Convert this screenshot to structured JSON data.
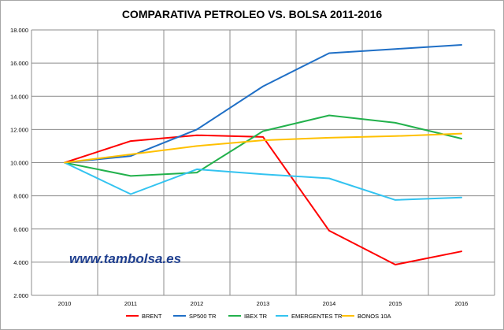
{
  "chart_data": {
    "type": "line",
    "title": "COMPARATIVA PETROLEO VS. BOLSA 2011-2016",
    "x": [
      "2010",
      "2011",
      "2012",
      "2013",
      "2014",
      "2015",
      "2016"
    ],
    "ylim": [
      2.0,
      18.0
    ],
    "yticks": [
      2.0,
      4.0,
      6.0,
      8.0,
      10.0,
      12.0,
      14.0,
      16.0,
      18.0
    ],
    "ytick_labels": [
      "2.000",
      "4.000",
      "6.000",
      "8.000",
      "10.000",
      "12.000",
      "14.000",
      "16.000",
      "18.000"
    ],
    "grid": true,
    "legend_position": "bottom",
    "series": [
      {
        "name": "BRENT",
        "color": "#ff0000",
        "values": [
          10.0,
          11.3,
          11.65,
          11.55,
          5.9,
          3.85,
          4.65
        ]
      },
      {
        "name": "SP500 TR",
        "color": "#1f6fc6",
        "values": [
          10.0,
          10.4,
          12.0,
          14.6,
          16.6,
          16.85,
          17.1
        ]
      },
      {
        "name": "IBEX TR",
        "color": "#22b14c",
        "values": [
          10.0,
          9.2,
          9.4,
          11.9,
          12.85,
          12.4,
          11.45
        ]
      },
      {
        "name": "EMERGENTES TR",
        "color": "#33c3f0",
        "values": [
          10.0,
          8.1,
          9.6,
          9.3,
          9.05,
          7.75,
          7.9
        ]
      },
      {
        "name": "BONOS 10A",
        "color": "#ffc000",
        "values": [
          10.0,
          10.5,
          11.0,
          11.35,
          11.5,
          11.6,
          11.75
        ]
      }
    ]
  },
  "watermark": "www.tambolsa.es"
}
